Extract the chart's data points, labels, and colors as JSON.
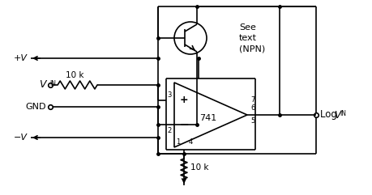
{
  "bg_color": "#ffffff",
  "line_color": "#000000",
  "labels": {
    "plus_v": "+V",
    "minus_v": "−V",
    "vin": "V",
    "vin_sub": "IN",
    "gnd": "GND",
    "resistor1": "10 k",
    "resistor2": "10 k",
    "ic": "741",
    "pin3": "3",
    "pin2": "2",
    "pin7": "7",
    "pin6": "6",
    "pin5": "5",
    "pin4": "4",
    "pin1": "1",
    "see_text": "See\ntext\n(NPN)",
    "log_v": "Log V",
    "log_sub": "IN"
  },
  "layout": {
    "fig_w": 4.6,
    "fig_h": 2.41,
    "dpi": 100
  }
}
